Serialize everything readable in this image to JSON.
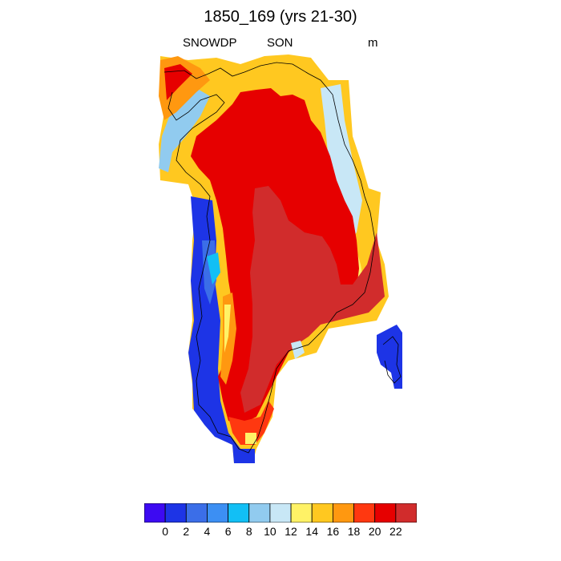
{
  "header": {
    "title": "1850_169 (yrs 21-30)",
    "variable": "SNOWDP",
    "season": "SON",
    "units": "m"
  },
  "colorbar": {
    "colors": [
      "#3d0af2",
      "#1d34e6",
      "#3b6ee8",
      "#3c8ff3",
      "#12bff5",
      "#91cbef",
      "#c8e7f6",
      "#fff266",
      "#ffc820",
      "#ff9810",
      "#ff3810",
      "#e60000",
      "#d12c2c"
    ],
    "ticks": [
      "0",
      "2",
      "4",
      "6",
      "8",
      "10",
      "12",
      "14",
      "16",
      "18",
      "20",
      "22"
    ]
  },
  "map": {
    "region": "Greenland",
    "colormap_note": "Snow depth in autumn; blue along western coast, red in interior"
  }
}
